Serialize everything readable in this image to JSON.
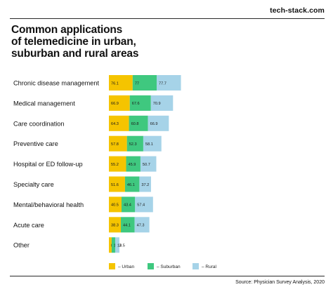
{
  "brand": "tech-stack.com",
  "title_lines": [
    "Common applications",
    "of telemedicine in urban,",
    "suburban and rural areas"
  ],
  "source": "Source: Physician Survey Analysis, 2020",
  "colors": {
    "urban": "#f5c400",
    "suburban": "#3fc87f",
    "rural": "#a6d3e8"
  },
  "chart_data": {
    "type": "bar",
    "orientation": "horizontal",
    "stacked": true,
    "title": "Common applications of telemedicine in urban, suburban and rural areas",
    "legend_position": "bottom-left",
    "grid": false,
    "categories": [
      "Chronic disease management",
      "Medical management",
      "Care coordination",
      "Preventive care",
      "Hospital or ED follow-up",
      "Specialty care",
      "Mental/behavioral health",
      "Acute care",
      "Other"
    ],
    "series": [
      {
        "name": "Urban",
        "legend_label": "– Urban",
        "values": [
          76.1,
          66.9,
          64.3,
          57.8,
          55.2,
          51.6,
          40.5,
          38.3,
          8.9
        ],
        "labels": [
          "76.1",
          "66.9",
          "64.3",
          "57.8",
          "55.2",
          "51.6",
          "40.5",
          "38.3",
          "8.9"
        ]
      },
      {
        "name": "Suburban",
        "legend_label": "– Suburban",
        "values": [
          77,
          67.6,
          60.8,
          52.3,
          45.9,
          46.1,
          43.4,
          44.1,
          11.3
        ],
        "labels": [
          "77",
          "67.6",
          "60.8",
          "52.3",
          "45.9",
          "46.1",
          "43.4",
          "44.1",
          "11.3"
        ]
      },
      {
        "name": "Rural",
        "legend_label": "– Rural",
        "values": [
          77.7,
          70.9,
          66.9,
          58.1,
          50.7,
          37.2,
          57.4,
          47.3,
          13.5
        ],
        "labels": [
          "77.7",
          "70.9",
          "66.9",
          "58.1",
          "50.7",
          "37.2",
          "57.4",
          "47.3",
          "13.5"
        ]
      }
    ]
  }
}
